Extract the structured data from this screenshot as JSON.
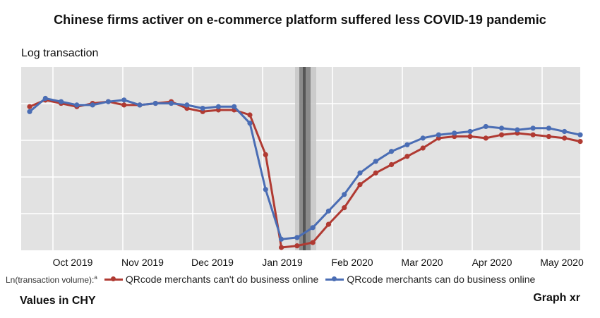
{
  "header": {
    "title": "Chinese firms activer on e-commerce platform suffered less COVID-19 pandemic"
  },
  "footer": {
    "left": "Values in CHY",
    "right": "Graph xr"
  },
  "legend": {
    "lead": "Ln(transaction volume):",
    "lead_sup": "a"
  },
  "colors": {
    "red": "#b03a32",
    "blue": "#4a6db4",
    "plot_bg": "#e2e2e2",
    "grid": "#ffffff",
    "shade": "#7f7f7f"
  },
  "chart_data": {
    "type": "line",
    "title": "Chinese firms activer on e-commerce platform suffered less COVID-19 pandemic",
    "ylabel": "Log transaction",
    "xlabel": "",
    "y_tick_labels_shown": false,
    "grid": true,
    "legend_position": "bottom",
    "x_tick_labels": [
      "Oct 2019",
      "Nov 2019",
      "Dec 2019",
      "Jan 2019",
      "Feb 2020",
      "Mar 2020",
      "Apr 2020",
      "May 2020"
    ],
    "x": [
      0,
      1,
      2,
      3,
      4,
      5,
      6,
      7,
      8,
      9,
      10,
      11,
      12,
      13,
      14,
      15,
      16,
      17,
      18,
      19,
      20,
      21,
      22,
      23,
      24,
      25,
      26,
      27,
      28,
      29,
      30,
      31,
      32,
      33,
      34,
      35
    ],
    "ylim": [
      0,
      100
    ],
    "vertical_band_at_x": 17.5,
    "series": [
      {
        "name": "QRcode merchants can't do business online",
        "color": "#b03a32",
        "values": [
          85,
          89,
          87,
          85,
          87,
          88,
          86,
          86,
          87,
          88,
          84,
          82,
          83,
          83,
          80,
          56,
          0,
          1,
          3,
          14,
          24,
          38,
          45,
          50,
          55,
          60,
          66,
          67,
          67,
          66,
          68,
          69,
          68,
          67,
          66,
          64
        ]
      },
      {
        "name": "QRcode merchants can do business online",
        "color": "#4a6db4",
        "values": [
          82,
          90,
          88,
          86,
          86,
          88,
          89,
          86,
          87,
          87,
          86,
          84,
          85,
          85,
          75,
          35,
          5,
          6,
          12,
          22,
          32,
          45,
          52,
          58,
          62,
          66,
          68,
          69,
          70,
          73,
          72,
          71,
          72,
          72,
          70,
          68
        ]
      }
    ]
  }
}
